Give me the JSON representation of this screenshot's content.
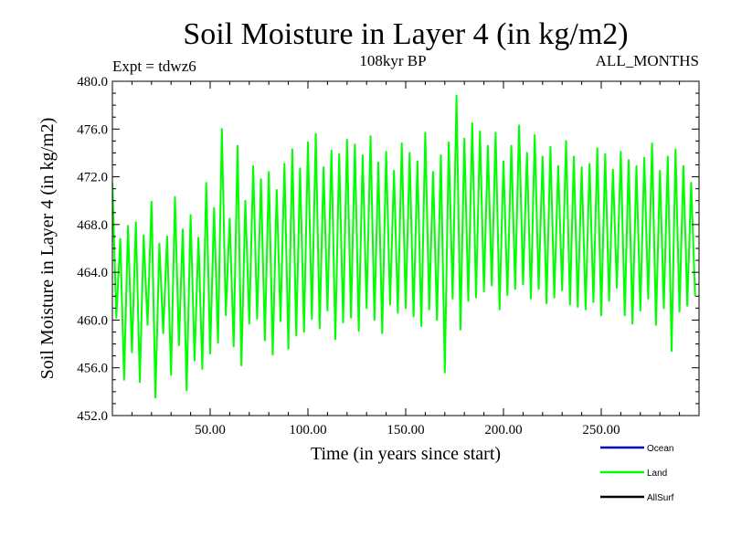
{
  "chart_data": {
    "type": "line",
    "title": "Soil Moisture in Layer 4 (in kg/m2)",
    "subtitle_left": "Expt = tdwz6",
    "subtitle_center": "108kyr BP",
    "subtitle_right": "ALL_MONTHS",
    "xlabel": "Time (in years since start)",
    "ylabel": "Soil Moisture in Layer 4 (in kg/m2)",
    "xlim": [
      0,
      300
    ],
    "ylim": [
      452,
      480
    ],
    "x_ticks": [
      50,
      100,
      150,
      200,
      250
    ],
    "x_tick_labels": [
      "50.00",
      "100.00",
      "150.00",
      "200.00",
      "250.00"
    ],
    "y_ticks": [
      452,
      456,
      460,
      464,
      468,
      472,
      476,
      480
    ],
    "y_tick_labels": [
      "452.0",
      "456.0",
      "460.0",
      "464.0",
      "468.0",
      "472.0",
      "476.0",
      "480.0"
    ],
    "grid": false,
    "legend_placement": "bottom-right, below plot",
    "series": [
      {
        "name": "Ocean",
        "color": "#0000cc",
        "x": [],
        "values": []
      },
      {
        "name": "Land",
        "color": "#00ff00",
        "x": [
          0,
          2,
          4,
          6,
          8,
          10,
          12,
          14,
          16,
          18,
          20,
          22,
          24,
          26,
          28,
          30,
          32,
          34,
          36,
          38,
          40,
          42,
          44,
          46,
          48,
          50,
          52,
          54,
          56,
          58,
          60,
          62,
          64,
          66,
          68,
          70,
          72,
          74,
          76,
          78,
          80,
          82,
          84,
          86,
          88,
          90,
          92,
          94,
          96,
          98,
          100,
          102,
          104,
          106,
          108,
          110,
          112,
          114,
          116,
          118,
          120,
          122,
          124,
          126,
          128,
          130,
          132,
          134,
          136,
          138,
          140,
          142,
          144,
          146,
          148,
          150,
          152,
          154,
          156,
          158,
          160,
          162,
          164,
          166,
          168,
          170,
          172,
          174,
          176,
          178,
          180,
          182,
          184,
          186,
          188,
          190,
          192,
          194,
          196,
          198,
          200,
          202,
          204,
          206,
          208,
          210,
          212,
          214,
          216,
          218,
          220,
          222,
          224,
          226,
          228,
          230,
          232,
          234,
          236,
          238,
          240,
          242,
          244,
          246,
          248,
          250,
          252,
          254,
          256,
          258,
          260,
          262,
          264,
          266,
          268,
          270,
          272,
          274,
          276,
          278,
          280,
          282,
          284,
          286,
          288,
          290,
          292,
          294,
          296,
          298
        ],
        "values": [
          471.5,
          460.2,
          466.8,
          455.0,
          467.9,
          457.3,
          468.2,
          454.8,
          467.1,
          459.6,
          469.9,
          453.5,
          466.4,
          458.9,
          467.0,
          455.4,
          470.3,
          457.9,
          467.6,
          454.1,
          468.8,
          456.6,
          466.9,
          455.9,
          471.5,
          457.2,
          469.4,
          458.1,
          476.0,
          460.4,
          468.5,
          457.8,
          474.6,
          456.2,
          470.0,
          459.7,
          472.9,
          460.1,
          471.8,
          458.3,
          472.4,
          457.1,
          470.9,
          459.9,
          473.1,
          457.6,
          474.3,
          458.7,
          472.7,
          459.0,
          474.9,
          460.1,
          475.6,
          459.3,
          472.8,
          460.8,
          474.2,
          458.4,
          473.9,
          459.8,
          475.1,
          460.2,
          474.7,
          459.1,
          473.8,
          461.0,
          475.4,
          460.0,
          473.2,
          458.9,
          474.1,
          461.3,
          472.5,
          460.6,
          474.8,
          461.0,
          474.0,
          460.3,
          473.3,
          459.5,
          475.7,
          460.9,
          472.4,
          460.0,
          473.8,
          455.6,
          474.9,
          461.8,
          478.8,
          459.2,
          475.2,
          461.6,
          476.5,
          461.9,
          475.8,
          462.4,
          474.6,
          462.9,
          475.7,
          460.9,
          473.3,
          462.1,
          474.6,
          462.6,
          476.3,
          463.0,
          474.0,
          461.8,
          475.5,
          462.6,
          473.7,
          461.4,
          474.5,
          461.9,
          472.9,
          462.5,
          475.0,
          461.3,
          473.7,
          461.1,
          472.8,
          460.9,
          473.1,
          461.5,
          474.4,
          460.4,
          473.9,
          461.6,
          472.6,
          462.7,
          474.1,
          460.4,
          473.4,
          459.7,
          472.9,
          460.8,
          473.6,
          461.8,
          474.8,
          459.6,
          472.5,
          461.0,
          473.7,
          457.4,
          474.3,
          460.7,
          472.9,
          461.2,
          471.5,
          462.0
        ]
      },
      {
        "name": "AllSurf",
        "color": "#000000",
        "x": [],
        "values": []
      }
    ]
  }
}
